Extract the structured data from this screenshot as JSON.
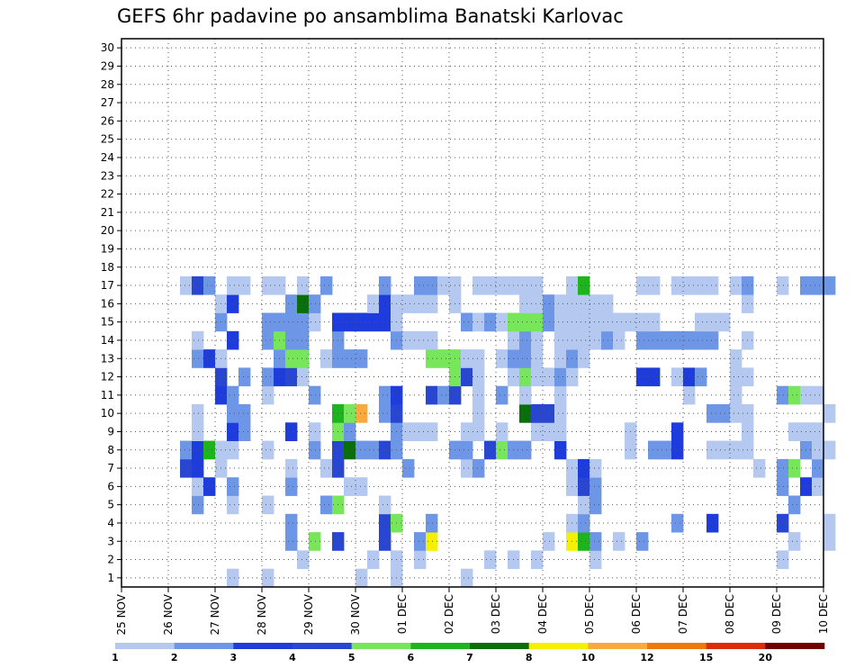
{
  "chart_data": {
    "type": "heatmap",
    "title": "GEFS 6hr padavine po ansamblima Banatski Karlovac",
    "x_tick_labels": [
      "25 NOV",
      "26 NOV",
      "27 NOV",
      "28 NOV",
      "29 NOV",
      "30 NOV",
      "01 DEC",
      "02 DEC",
      "03 DEC",
      "04 DEC",
      "05 DEC",
      "06 DEC",
      "07 DEC",
      "08 DEC",
      "09 DEC",
      "10 DEC"
    ],
    "y_tick_labels": [
      "1",
      "2",
      "3",
      "4",
      "5",
      "6",
      "7",
      "8",
      "9",
      "10",
      "11",
      "12",
      "13",
      "14",
      "15",
      "16",
      "17",
      "18",
      "19",
      "20",
      "21",
      "22",
      "23",
      "24",
      "25",
      "26",
      "27",
      "28",
      "29",
      "30"
    ],
    "x_range_steps": [
      0,
      60
    ],
    "steps_per_day": 4,
    "y_range": [
      0,
      30
    ],
    "grid": true,
    "colorbar": {
      "tick_labels": [
        "1",
        "2",
        "3",
        "4",
        "5",
        "6",
        "7",
        "8",
        "10",
        "12",
        "15",
        "20"
      ],
      "bins": [
        1,
        2,
        3,
        4,
        5,
        6,
        7,
        8,
        10,
        12,
        15,
        20
      ],
      "colors": [
        "#b4c8f0",
        "#6e96e6",
        "#1e3cdc",
        "#2846d2",
        "#78e65a",
        "#1eb41e",
        "#0a6e0a",
        "#f5f000",
        "#faaa3c",
        "#f0780a",
        "#dc2d0a",
        "#6e0000"
      ]
    },
    "cells": [
      [
        9,
        1,
        0
      ],
      [
        12,
        1,
        0
      ],
      [
        20,
        1,
        0
      ],
      [
        23,
        1,
        0
      ],
      [
        29,
        1,
        0
      ],
      [
        15,
        2,
        0
      ],
      [
        21,
        2,
        0
      ],
      [
        23,
        2,
        0
      ],
      [
        25,
        2,
        0
      ],
      [
        31,
        2,
        0
      ],
      [
        33,
        2,
        0
      ],
      [
        35,
        2,
        0
      ],
      [
        40,
        2,
        0
      ],
      [
        56,
        2,
        0
      ],
      [
        14,
        3,
        1
      ],
      [
        16,
        3,
        4
      ],
      [
        18,
        3,
        3
      ],
      [
        22,
        3,
        3
      ],
      [
        25,
        3,
        1
      ],
      [
        26,
        3,
        7
      ],
      [
        36,
        3,
        0
      ],
      [
        38,
        3,
        7
      ],
      [
        39,
        3,
        5
      ],
      [
        40,
        3,
        1
      ],
      [
        42,
        3,
        0
      ],
      [
        44,
        3,
        1
      ],
      [
        57,
        3,
        0
      ],
      [
        60,
        3,
        0
      ],
      [
        14,
        4,
        1
      ],
      [
        22,
        4,
        3
      ],
      [
        23,
        4,
        4
      ],
      [
        26,
        4,
        1
      ],
      [
        38,
        4,
        0
      ],
      [
        39,
        4,
        1
      ],
      [
        47,
        4,
        1
      ],
      [
        50,
        4,
        2
      ],
      [
        56,
        4,
        3
      ],
      [
        60,
        4,
        0
      ],
      [
        6,
        5,
        1
      ],
      [
        9,
        5,
        0
      ],
      [
        12,
        5,
        0
      ],
      [
        17,
        5,
        1
      ],
      [
        18,
        5,
        4
      ],
      [
        22,
        5,
        0
      ],
      [
        39,
        5,
        0
      ],
      [
        40,
        5,
        1
      ],
      [
        57,
        5,
        1
      ],
      [
        6,
        6,
        0
      ],
      [
        7,
        6,
        2
      ],
      [
        9,
        6,
        1
      ],
      [
        14,
        6,
        1
      ],
      [
        19,
        6,
        0
      ],
      [
        20,
        6,
        0
      ],
      [
        38,
        6,
        0
      ],
      [
        39,
        6,
        3
      ],
      [
        40,
        6,
        1
      ],
      [
        56,
        6,
        1
      ],
      [
        58,
        6,
        2
      ],
      [
        59,
        6,
        0
      ],
      [
        5,
        7,
        3
      ],
      [
        6,
        7,
        2
      ],
      [
        8,
        7,
        0
      ],
      [
        14,
        7,
        0
      ],
      [
        17,
        7,
        0
      ],
      [
        18,
        7,
        3
      ],
      [
        24,
        7,
        1
      ],
      [
        29,
        7,
        0
      ],
      [
        30,
        7,
        1
      ],
      [
        38,
        7,
        0
      ],
      [
        39,
        7,
        2
      ],
      [
        40,
        7,
        0
      ],
      [
        54,
        7,
        0
      ],
      [
        56,
        7,
        1
      ],
      [
        57,
        7,
        4
      ],
      [
        59,
        7,
        1
      ],
      [
        5,
        8,
        1
      ],
      [
        6,
        8,
        2
      ],
      [
        7,
        8,
        5
      ],
      [
        8,
        8,
        0
      ],
      [
        9,
        8,
        0
      ],
      [
        12,
        8,
        0
      ],
      [
        16,
        8,
        1
      ],
      [
        18,
        8,
        3
      ],
      [
        19,
        8,
        6
      ],
      [
        20,
        8,
        1
      ],
      [
        21,
        8,
        1
      ],
      [
        22,
        8,
        3
      ],
      [
        23,
        8,
        1
      ],
      [
        28,
        8,
        1
      ],
      [
        29,
        8,
        1
      ],
      [
        31,
        8,
        3
      ],
      [
        32,
        8,
        4
      ],
      [
        33,
        8,
        1
      ],
      [
        34,
        8,
        1
      ],
      [
        37,
        8,
        2
      ],
      [
        43,
        8,
        0
      ],
      [
        45,
        8,
        1
      ],
      [
        46,
        8,
        1
      ],
      [
        47,
        8,
        2
      ],
      [
        50,
        8,
        0
      ],
      [
        51,
        8,
        0
      ],
      [
        52,
        8,
        0
      ],
      [
        53,
        8,
        0
      ],
      [
        58,
        8,
        1
      ],
      [
        59,
        8,
        0
      ],
      [
        60,
        8,
        0
      ],
      [
        6,
        9,
        0
      ],
      [
        9,
        9,
        2
      ],
      [
        10,
        9,
        1
      ],
      [
        14,
        9,
        2
      ],
      [
        16,
        9,
        0
      ],
      [
        18,
        9,
        4
      ],
      [
        19,
        9,
        1
      ],
      [
        23,
        9,
        1
      ],
      [
        24,
        9,
        0
      ],
      [
        25,
        9,
        0
      ],
      [
        26,
        9,
        0
      ],
      [
        29,
        9,
        0
      ],
      [
        30,
        9,
        0
      ],
      [
        32,
        9,
        0
      ],
      [
        35,
        9,
        0
      ],
      [
        36,
        9,
        0
      ],
      [
        37,
        9,
        0
      ],
      [
        43,
        9,
        0
      ],
      [
        47,
        9,
        2
      ],
      [
        53,
        9,
        0
      ],
      [
        57,
        9,
        0
      ],
      [
        58,
        9,
        0
      ],
      [
        59,
        9,
        0
      ],
      [
        6,
        10,
        0
      ],
      [
        9,
        10,
        1
      ],
      [
        10,
        10,
        1
      ],
      [
        18,
        10,
        5
      ],
      [
        19,
        10,
        4
      ],
      [
        20,
        10,
        8
      ],
      [
        22,
        10,
        1
      ],
      [
        23,
        10,
        3
      ],
      [
        30,
        10,
        0
      ],
      [
        34,
        10,
        6
      ],
      [
        35,
        10,
        3
      ],
      [
        36,
        10,
        3
      ],
      [
        37,
        10,
        0
      ],
      [
        50,
        10,
        1
      ],
      [
        51,
        10,
        1
      ],
      [
        52,
        10,
        0
      ],
      [
        53,
        10,
        0
      ],
      [
        60,
        10,
        0
      ],
      [
        8,
        11,
        2
      ],
      [
        9,
        11,
        1
      ],
      [
        12,
        11,
        0
      ],
      [
        16,
        11,
        1
      ],
      [
        22,
        11,
        1
      ],
      [
        23,
        11,
        2
      ],
      [
        26,
        11,
        3
      ],
      [
        27,
        11,
        1
      ],
      [
        28,
        11,
        3
      ],
      [
        30,
        11,
        0
      ],
      [
        32,
        11,
        1
      ],
      [
        34,
        11,
        0
      ],
      [
        37,
        11,
        0
      ],
      [
        48,
        11,
        0
      ],
      [
        52,
        11,
        0
      ],
      [
        56,
        11,
        1
      ],
      [
        57,
        11,
        4
      ],
      [
        58,
        11,
        0
      ],
      [
        59,
        11,
        0
      ],
      [
        8,
        12,
        3
      ],
      [
        10,
        12,
        1
      ],
      [
        12,
        12,
        1
      ],
      [
        13,
        12,
        2
      ],
      [
        14,
        12,
        3
      ],
      [
        15,
        12,
        0
      ],
      [
        28,
        12,
        4
      ],
      [
        29,
        12,
        3
      ],
      [
        30,
        12,
        0
      ],
      [
        33,
        12,
        0
      ],
      [
        34,
        12,
        4
      ],
      [
        35,
        12,
        0
      ],
      [
        36,
        12,
        0
      ],
      [
        37,
        12,
        1
      ],
      [
        38,
        12,
        0
      ],
      [
        44,
        12,
        2
      ],
      [
        45,
        12,
        2
      ],
      [
        47,
        12,
        0
      ],
      [
        48,
        12,
        2
      ],
      [
        49,
        12,
        1
      ],
      [
        52,
        12,
        0
      ],
      [
        53,
        12,
        0
      ],
      [
        6,
        13,
        1
      ],
      [
        7,
        13,
        2
      ],
      [
        8,
        13,
        0
      ],
      [
        13,
        13,
        1
      ],
      [
        14,
        13,
        4
      ],
      [
        15,
        13,
        4
      ],
      [
        17,
        13,
        0
      ],
      [
        18,
        13,
        1
      ],
      [
        19,
        13,
        1
      ],
      [
        20,
        13,
        1
      ],
      [
        26,
        13,
        4
      ],
      [
        27,
        13,
        4
      ],
      [
        28,
        13,
        4
      ],
      [
        29,
        13,
        0
      ],
      [
        30,
        13,
        0
      ],
      [
        32,
        13,
        0
      ],
      [
        33,
        13,
        1
      ],
      [
        34,
        13,
        1
      ],
      [
        35,
        13,
        0
      ],
      [
        37,
        13,
        0
      ],
      [
        38,
        13,
        1
      ],
      [
        39,
        13,
        0
      ],
      [
        52,
        13,
        0
      ],
      [
        6,
        14,
        0
      ],
      [
        9,
        14,
        2
      ],
      [
        12,
        14,
        1
      ],
      [
        13,
        14,
        4
      ],
      [
        14,
        14,
        1
      ],
      [
        15,
        14,
        1
      ],
      [
        18,
        14,
        1
      ],
      [
        23,
        14,
        1
      ],
      [
        24,
        14,
        0
      ],
      [
        25,
        14,
        0
      ],
      [
        26,
        14,
        0
      ],
      [
        33,
        14,
        0
      ],
      [
        34,
        14,
        1
      ],
      [
        35,
        14,
        0
      ],
      [
        37,
        14,
        0
      ],
      [
        38,
        14,
        0
      ],
      [
        39,
        14,
        0
      ],
      [
        40,
        14,
        0
      ],
      [
        41,
        14,
        1
      ],
      [
        42,
        14,
        0
      ],
      [
        44,
        14,
        1
      ],
      [
        45,
        14,
        1
      ],
      [
        46,
        14,
        1
      ],
      [
        47,
        14,
        1
      ],
      [
        48,
        14,
        1
      ],
      [
        49,
        14,
        1
      ],
      [
        50,
        14,
        1
      ],
      [
        53,
        14,
        0
      ],
      [
        8,
        15,
        1
      ],
      [
        12,
        15,
        1
      ],
      [
        13,
        15,
        1
      ],
      [
        14,
        15,
        1
      ],
      [
        15,
        15,
        1
      ],
      [
        16,
        15,
        0
      ],
      [
        18,
        15,
        2
      ],
      [
        19,
        15,
        2
      ],
      [
        20,
        15,
        2
      ],
      [
        21,
        15,
        2
      ],
      [
        22,
        15,
        2
      ],
      [
        23,
        15,
        0
      ],
      [
        29,
        15,
        1
      ],
      [
        30,
        15,
        0
      ],
      [
        31,
        15,
        1
      ],
      [
        32,
        15,
        0
      ],
      [
        33,
        15,
        4
      ],
      [
        34,
        15,
        4
      ],
      [
        35,
        15,
        4
      ],
      [
        36,
        15,
        1
      ],
      [
        37,
        15,
        0
      ],
      [
        38,
        15,
        0
      ],
      [
        39,
        15,
        0
      ],
      [
        40,
        15,
        0
      ],
      [
        41,
        15,
        0
      ],
      [
        42,
        15,
        0
      ],
      [
        43,
        15,
        0
      ],
      [
        44,
        15,
        0
      ],
      [
        45,
        15,
        0
      ],
      [
        49,
        15,
        0
      ],
      [
        50,
        15,
        0
      ],
      [
        51,
        15,
        0
      ],
      [
        8,
        16,
        0
      ],
      [
        9,
        16,
        2
      ],
      [
        14,
        16,
        1
      ],
      [
        15,
        16,
        6
      ],
      [
        16,
        16,
        1
      ],
      [
        21,
        16,
        0
      ],
      [
        22,
        16,
        2
      ],
      [
        23,
        16,
        0
      ],
      [
        24,
        16,
        0
      ],
      [
        25,
        16,
        0
      ],
      [
        26,
        16,
        0
      ],
      [
        28,
        16,
        0
      ],
      [
        34,
        16,
        0
      ],
      [
        35,
        16,
        0
      ],
      [
        36,
        16,
        1
      ],
      [
        37,
        16,
        0
      ],
      [
        38,
        16,
        0
      ],
      [
        39,
        16,
        0
      ],
      [
        40,
        16,
        0
      ],
      [
        41,
        16,
        0
      ],
      [
        53,
        16,
        0
      ],
      [
        5,
        17,
        0
      ],
      [
        6,
        17,
        3
      ],
      [
        7,
        17,
        1
      ],
      [
        9,
        17,
        0
      ],
      [
        10,
        17,
        0
      ],
      [
        12,
        17,
        0
      ],
      [
        13,
        17,
        0
      ],
      [
        15,
        17,
        0
      ],
      [
        17,
        17,
        1
      ],
      [
        22,
        17,
        1
      ],
      [
        25,
        17,
        1
      ],
      [
        26,
        17,
        1
      ],
      [
        27,
        17,
        0
      ],
      [
        28,
        17,
        0
      ],
      [
        30,
        17,
        0
      ],
      [
        31,
        17,
        0
      ],
      [
        32,
        17,
        0
      ],
      [
        33,
        17,
        0
      ],
      [
        34,
        17,
        0
      ],
      [
        35,
        17,
        0
      ],
      [
        38,
        17,
        0
      ],
      [
        39,
        17,
        5
      ],
      [
        44,
        17,
        0
      ],
      [
        45,
        17,
        0
      ],
      [
        47,
        17,
        0
      ],
      [
        48,
        17,
        0
      ],
      [
        49,
        17,
        0
      ],
      [
        50,
        17,
        0
      ],
      [
        52,
        17,
        0
      ],
      [
        53,
        17,
        1
      ],
      [
        56,
        17,
        0
      ],
      [
        58,
        17,
        1
      ],
      [
        59,
        17,
        1
      ],
      [
        60,
        17,
        1
      ]
    ]
  }
}
